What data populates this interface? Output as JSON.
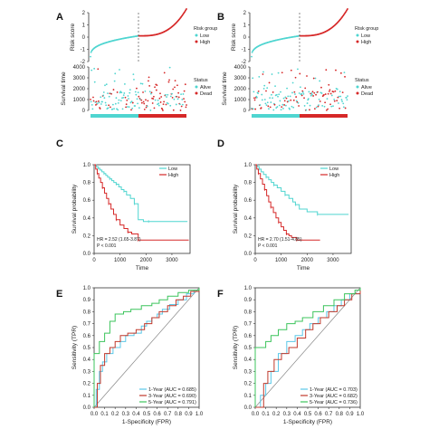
{
  "colors": {
    "low": "#4fd5d0",
    "high": "#d62828",
    "y1": "#5bc8e8",
    "y3": "#c0392b",
    "y5": "#3cc45c",
    "diag": "#888888",
    "frame": "#333333"
  },
  "panels": {
    "A": {
      "letter": "A"
    },
    "B": {
      "letter": "B"
    },
    "C": {
      "letter": "C"
    },
    "D": {
      "letter": "D"
    },
    "E": {
      "letter": "E"
    },
    "F": {
      "letter": "F"
    }
  },
  "chart_data": [
    {
      "id": "A",
      "type": "scatter",
      "panels": [
        {
          "ylabel": "Risk score",
          "ylim": [
            -2,
            2
          ],
          "yticks": [
            "-2",
            "-1",
            "0",
            "1",
            "2"
          ],
          "n_low": 90,
          "n_high": 90,
          "legend_title": "Risk group",
          "legend": [
            "Low",
            "High"
          ]
        },
        {
          "ylabel": "Survival time",
          "ylim": [
            0,
            4000
          ],
          "yticks": [
            "0",
            "1000",
            "2000",
            "3000",
            "4000"
          ],
          "legend_title": "Status",
          "legend": [
            "Alive",
            "Dead"
          ]
        }
      ]
    },
    {
      "id": "B",
      "type": "scatter",
      "panels": [
        {
          "ylabel": "Risk score",
          "ylim": [
            -2,
            2
          ],
          "yticks": [
            "-2",
            "-1",
            "0",
            "1",
            "2"
          ],
          "n_low": 90,
          "n_high": 90,
          "legend_title": "Risk group",
          "legend": [
            "Low",
            "High"
          ]
        },
        {
          "ylabel": "Survival time",
          "ylim": [
            0,
            4000
          ],
          "yticks": [
            "0",
            "1000",
            "2000",
            "3000",
            "4000"
          ],
          "legend_title": "Status",
          "legend": [
            "Alive",
            "Dead"
          ]
        }
      ]
    },
    {
      "id": "C",
      "type": "line",
      "xlabel": "Time",
      "ylabel": "Survival probability",
      "xlim": [
        0,
        3700
      ],
      "ylim": [
        0,
        1.0
      ],
      "xticks": [
        "0",
        "1000",
        "2000",
        "3000"
      ],
      "yticks": [
        "0.0",
        "0.2",
        "0.4",
        "0.6",
        "0.8",
        "1.0"
      ],
      "annotation": [
        "HR = 2.52 (1.65-3.87)",
        "P < 0.001"
      ],
      "legend": [
        "Low",
        "High"
      ],
      "series": [
        {
          "name": "Low",
          "x": [
            0,
            80,
            150,
            220,
            300,
            380,
            450,
            520,
            600,
            680,
            760,
            850,
            950,
            1050,
            1150,
            1250,
            1400,
            1550,
            1700,
            1900,
            2100,
            3600
          ],
          "y": [
            1.0,
            0.98,
            0.96,
            0.94,
            0.92,
            0.9,
            0.88,
            0.86,
            0.84,
            0.82,
            0.8,
            0.78,
            0.75,
            0.72,
            0.7,
            0.66,
            0.62,
            0.56,
            0.38,
            0.36,
            0.36,
            0.36
          ]
        },
        {
          "name": "High",
          "x": [
            0,
            60,
            120,
            180,
            250,
            320,
            400,
            480,
            560,
            650,
            750,
            850,
            1000,
            1150,
            1300,
            1450,
            1650,
            1700,
            3650
          ],
          "y": [
            1.0,
            0.95,
            0.9,
            0.85,
            0.8,
            0.74,
            0.68,
            0.62,
            0.56,
            0.5,
            0.44,
            0.38,
            0.32,
            0.28,
            0.24,
            0.22,
            0.22,
            0.15,
            0.15
          ]
        }
      ]
    },
    {
      "id": "D",
      "type": "line",
      "xlabel": "Time",
      "ylabel": "Survival probability",
      "xlim": [
        0,
        3700
      ],
      "ylim": [
        0,
        1.0
      ],
      "xticks": [
        "0",
        "1000",
        "2000",
        "3000"
      ],
      "yticks": [
        "0.0",
        "0.2",
        "0.4",
        "0.6",
        "0.8",
        "1.0"
      ],
      "annotation": [
        "HR = 2.70 (1.51-4.85)",
        "P < 0.001"
      ],
      "legend": [
        "Low",
        "High"
      ],
      "series": [
        {
          "name": "Low",
          "x": [
            0,
            80,
            150,
            230,
            320,
            420,
            520,
            620,
            720,
            850,
            1000,
            1150,
            1300,
            1450,
            1550,
            1700,
            2000,
            2400,
            3600
          ],
          "y": [
            1.0,
            0.98,
            0.95,
            0.92,
            0.89,
            0.86,
            0.83,
            0.8,
            0.77,
            0.74,
            0.7,
            0.66,
            0.62,
            0.58,
            0.55,
            0.5,
            0.47,
            0.44,
            0.44
          ]
        },
        {
          "name": "High",
          "x": [
            0,
            60,
            120,
            200,
            280,
            360,
            440,
            520,
            600,
            700,
            800,
            900,
            1000,
            1100,
            1200,
            1300,
            1400,
            1600,
            2500
          ],
          "y": [
            1.0,
            0.95,
            0.9,
            0.84,
            0.78,
            0.72,
            0.65,
            0.58,
            0.52,
            0.46,
            0.4,
            0.35,
            0.3,
            0.26,
            0.22,
            0.2,
            0.18,
            0.15,
            0.15
          ]
        }
      ]
    },
    {
      "id": "E",
      "type": "line",
      "xlabel": "1-Specificity (FPR)",
      "ylabel": "Sensitivity (TPR)",
      "xlim": [
        0,
        1
      ],
      "ylim": [
        0,
        1
      ],
      "xticks": [
        "0.0",
        "0.1",
        "0.2",
        "0.3",
        "0.4",
        "0.5",
        "0.6",
        "0.7",
        "0.8",
        "0.9",
        "1.0"
      ],
      "yticks": [
        "0.0",
        "0.1",
        "0.2",
        "0.3",
        "0.4",
        "0.5",
        "0.6",
        "0.7",
        "0.8",
        "0.9",
        "1.0"
      ],
      "series": [
        {
          "name": "1-Year (AUC = 0.685)",
          "x": [
            0,
            0.02,
            0.05,
            0.08,
            0.12,
            0.18,
            0.25,
            0.3,
            0.38,
            0.45,
            0.5,
            0.55,
            0.6,
            0.65,
            0.72,
            0.8,
            0.88,
            0.95,
            1
          ],
          "y": [
            0,
            0.15,
            0.3,
            0.38,
            0.45,
            0.5,
            0.55,
            0.6,
            0.62,
            0.68,
            0.72,
            0.75,
            0.78,
            0.82,
            0.86,
            0.9,
            0.95,
            0.98,
            1
          ]
        },
        {
          "name": "3-Year (AUC = 0.690)",
          "x": [
            0,
            0.03,
            0.06,
            0.1,
            0.15,
            0.2,
            0.25,
            0.32,
            0.4,
            0.48,
            0.55,
            0.62,
            0.7,
            0.78,
            0.85,
            0.92,
            1
          ],
          "y": [
            0,
            0.2,
            0.35,
            0.45,
            0.5,
            0.55,
            0.6,
            0.62,
            0.65,
            0.7,
            0.75,
            0.8,
            0.85,
            0.9,
            0.93,
            0.97,
            1
          ]
        },
        {
          "name": "5-Year (AUC = 0.791)",
          "x": [
            0,
            0.0,
            0.05,
            0.1,
            0.15,
            0.2,
            0.28,
            0.35,
            0.45,
            0.55,
            0.62,
            0.7,
            0.8,
            0.9,
            1
          ],
          "y": [
            0,
            0.45,
            0.55,
            0.62,
            0.72,
            0.78,
            0.8,
            0.82,
            0.85,
            0.87,
            0.9,
            0.93,
            0.96,
            0.98,
            1
          ]
        }
      ]
    },
    {
      "id": "F",
      "type": "line",
      "xlabel": "1-Specificity (FPR)",
      "ylabel": "Sensitivity (TPR)",
      "xlim": [
        0,
        1
      ],
      "ylim": [
        0,
        1
      ],
      "xticks": [
        "0.0",
        "0.1",
        "0.2",
        "0.3",
        "0.4",
        "0.5",
        "0.6",
        "0.7",
        "0.8",
        "0.9",
        "1.0"
      ],
      "yticks": [
        "0.0",
        "0.1",
        "0.2",
        "0.3",
        "0.4",
        "0.5",
        "0.6",
        "0.7",
        "0.8",
        "0.9",
        "1.0"
      ],
      "series": [
        {
          "name": "1-Year (AUC = 0.703)",
          "x": [
            0,
            0.05,
            0.1,
            0.15,
            0.22,
            0.3,
            0.38,
            0.45,
            0.52,
            0.6,
            0.68,
            0.75,
            0.82,
            0.9,
            1
          ],
          "y": [
            0,
            0.1,
            0.2,
            0.3,
            0.45,
            0.55,
            0.6,
            0.65,
            0.7,
            0.75,
            0.8,
            0.85,
            0.9,
            0.95,
            1
          ]
        },
        {
          "name": "3-Year (AUC = 0.682)",
          "x": [
            0,
            0.08,
            0.12,
            0.18,
            0.25,
            0.32,
            0.4,
            0.48,
            0.55,
            0.62,
            0.7,
            0.78,
            0.85,
            0.92,
            1
          ],
          "y": [
            0,
            0.2,
            0.3,
            0.4,
            0.45,
            0.5,
            0.58,
            0.65,
            0.7,
            0.75,
            0.8,
            0.85,
            0.9,
            0.95,
            1
          ]
        },
        {
          "name": "5-Year (AUC = 0.736)",
          "x": [
            0,
            0.0,
            0.05,
            0.1,
            0.15,
            0.22,
            0.3,
            0.38,
            0.45,
            0.55,
            0.65,
            0.75,
            0.85,
            0.95,
            1
          ],
          "y": [
            0,
            0.5,
            0.5,
            0.55,
            0.6,
            0.65,
            0.7,
            0.72,
            0.75,
            0.8,
            0.85,
            0.9,
            0.95,
            0.98,
            1
          ]
        }
      ]
    }
  ]
}
